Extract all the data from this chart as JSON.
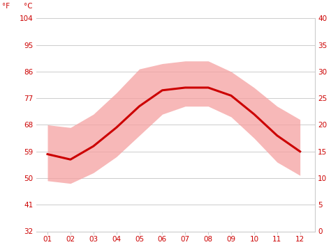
{
  "months": [
    1,
    2,
    3,
    4,
    5,
    6,
    7,
    8,
    9,
    10,
    11,
    12
  ],
  "month_labels": [
    "01",
    "02",
    "03",
    "04",
    "05",
    "06",
    "07",
    "08",
    "09",
    "10",
    "11",
    "12"
  ],
  "avg_temp_c": [
    14.5,
    13.5,
    16.0,
    19.5,
    23.5,
    26.5,
    27.0,
    27.0,
    25.5,
    22.0,
    18.0,
    15.0
  ],
  "max_temp_c": [
    20.0,
    19.5,
    22.0,
    26.0,
    30.5,
    31.5,
    32.0,
    32.0,
    30.0,
    27.0,
    23.5,
    21.0
  ],
  "min_temp_c": [
    9.5,
    9.0,
    11.0,
    14.0,
    18.0,
    22.0,
    23.5,
    23.5,
    21.5,
    17.5,
    13.0,
    10.5
  ],
  "y_ticks_c": [
    0,
    5,
    10,
    15,
    20,
    25,
    30,
    35,
    40
  ],
  "y_ticks_f": [
    32,
    41,
    50,
    59,
    68,
    77,
    86,
    95,
    104
  ],
  "ylim_c": [
    0,
    40
  ],
  "xlim": [
    0.5,
    12.65
  ],
  "line_color": "#cc0000",
  "fill_color": "#f5a0a0",
  "fill_alpha": 0.75,
  "grid_color": "#cccccc",
  "label_color": "#cc0000",
  "bg_color": "#ffffff",
  "line_width": 2.2,
  "ylabel_left": "°F",
  "ylabel_right": "°C",
  "tick_fontsize": 7.5
}
